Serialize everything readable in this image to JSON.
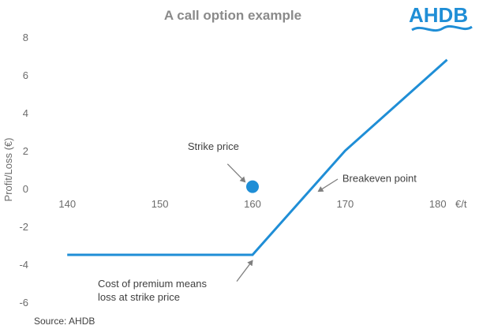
{
  "logo": {
    "text": "AHDB",
    "color": "#1f8ed6"
  },
  "source": "Source: AHDB",
  "chart_data": {
    "type": "line",
    "title": "A call option example",
    "xlabel": "€/t",
    "ylabel": "Profit/Loss (€)",
    "xlim": [
      137,
      183
    ],
    "ylim": [
      -6,
      8
    ],
    "x_ticks": [
      "140",
      "150",
      "160",
      "170",
      "180"
    ],
    "y_ticks": [
      "8",
      "6",
      "4",
      "2",
      "0",
      "-2",
      "-4",
      "-6"
    ],
    "series": [
      {
        "x": [
          140,
          160,
          170,
          181
        ],
        "y": [
          -3.5,
          -3.5,
          2,
          6.8
        ],
        "color": "#1f8ed6"
      }
    ],
    "strike_point": {
      "x": 160,
      "y": 0.1,
      "color": "#1f8ed6"
    },
    "annotations": [
      {
        "text": [
          "Strike price"
        ],
        "text_at": [
          153,
          2.05
        ],
        "anchor": "start",
        "arrow_from": [
          157.3,
          1.3
        ],
        "arrow_to": [
          159.2,
          0.35
        ]
      },
      {
        "text": [
          "Breakeven point"
        ],
        "text_at": [
          169.7,
          0.35
        ],
        "anchor": "start",
        "arrow_from": [
          169.2,
          0.5
        ],
        "arrow_to": [
          167.1,
          -0.15
        ]
      },
      {
        "text": [
          "Cost of premium means",
          "loss at strike price"
        ],
        "text_at": [
          143.3,
          -5.2
        ],
        "anchor": "start",
        "arrow_from": [
          158.3,
          -4.9
        ],
        "arrow_to": [
          160,
          -3.8
        ]
      }
    ],
    "grid": false,
    "legend": "none"
  }
}
